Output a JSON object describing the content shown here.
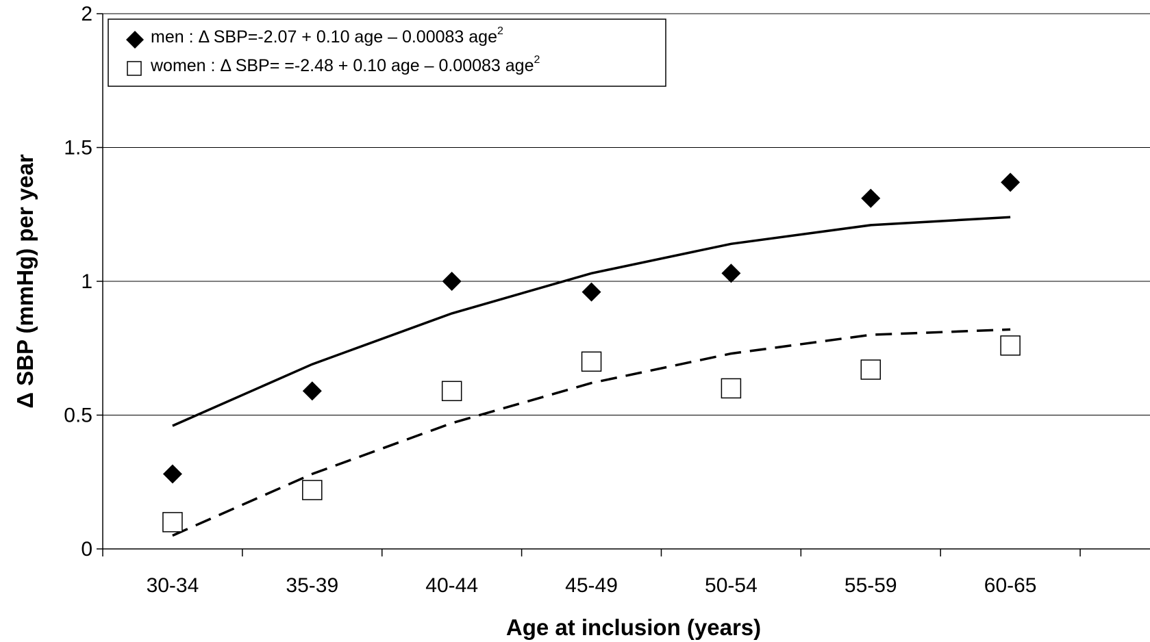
{
  "chart_data": {
    "type": "scatter",
    "xlabel": "Age at inclusion (years)",
    "ylabel": "Δ SBP (mmHg) per year",
    "categories": [
      "30-34",
      "35-39",
      "40-44",
      "45-49",
      "50-54",
      "55-59",
      "60-65"
    ],
    "ylim": [
      0,
      2
    ],
    "yticks": [
      0,
      0.5,
      1,
      1.5,
      2
    ],
    "ytick_labels": [
      "0",
      "0.5",
      "1",
      "1.5",
      "2"
    ],
    "grid": "horizontal",
    "legend_position": "top-left",
    "series": [
      {
        "name": "men",
        "marker": "filled-diamond",
        "values": [
          0.28,
          0.59,
          1.0,
          0.96,
          1.03,
          1.31,
          1.37
        ],
        "fit": [
          0.46,
          0.69,
          0.88,
          1.03,
          1.14,
          1.21,
          1.24
        ],
        "fit_style": "solid",
        "legend_label": "men : Δ SBP=-2.07 + 0.10 age – 0.00083 age",
        "legend_sup": "2"
      },
      {
        "name": "women",
        "marker": "open-square",
        "values": [
          0.1,
          0.22,
          0.59,
          0.7,
          0.6,
          0.67,
          0.76
        ],
        "fit": [
          0.05,
          0.28,
          0.47,
          0.62,
          0.73,
          0.8,
          0.82
        ],
        "fit_style": "dashed",
        "legend_label": "women : Δ SBP= =-2.48 + 0.10 age – 0.00083 age",
        "legend_sup": "2"
      }
    ]
  }
}
